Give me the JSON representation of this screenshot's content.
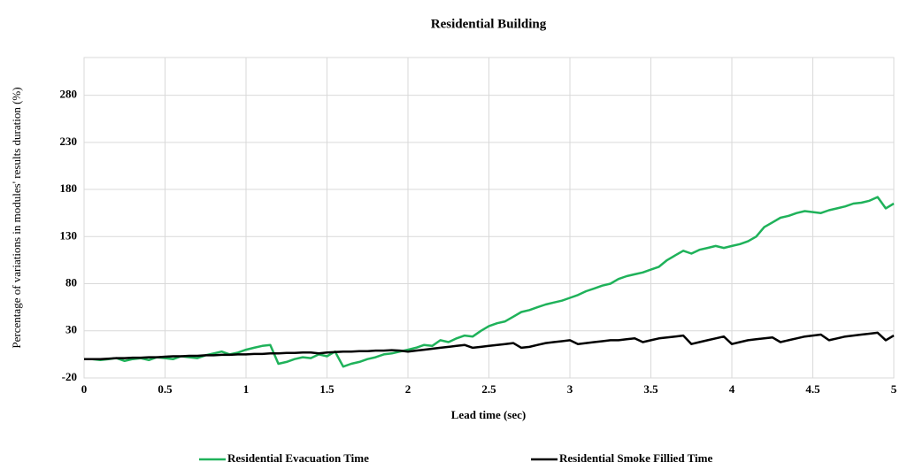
{
  "chart_data": {
    "type": "line",
    "title": "Residential Building",
    "x_label": "Lead time (sec)",
    "y_label": "Percentage of variations in modules' results duration (%)",
    "xlim": [
      0,
      5
    ],
    "xticks": [
      0,
      0.5,
      1,
      1.5,
      2,
      2.5,
      3,
      3.5,
      4,
      4.5,
      5
    ],
    "ylim": [
      -20,
      320
    ],
    "yticks": [
      -20,
      30,
      80,
      130,
      180,
      230,
      280
    ],
    "grid": true,
    "legend": "bottom",
    "x": [
      0,
      0.05,
      0.1,
      0.15,
      0.2,
      0.25,
      0.3,
      0.35,
      0.4,
      0.45,
      0.5,
      0.55,
      0.6,
      0.65,
      0.7,
      0.75,
      0.8,
      0.85,
      0.9,
      0.95,
      1,
      1.05,
      1.1,
      1.15,
      1.2,
      1.25,
      1.3,
      1.35,
      1.4,
      1.45,
      1.5,
      1.55,
      1.6,
      1.65,
      1.7,
      1.75,
      1.8,
      1.85,
      1.9,
      1.95,
      2,
      2.05,
      2.1,
      2.15,
      2.2,
      2.25,
      2.3,
      2.35,
      2.4,
      2.45,
      2.5,
      2.55,
      2.6,
      2.65,
      2.7,
      2.75,
      2.8,
      2.85,
      2.9,
      2.95,
      3,
      3.05,
      3.1,
      3.15,
      3.2,
      3.25,
      3.3,
      3.35,
      3.4,
      3.45,
      3.5,
      3.55,
      3.6,
      3.65,
      3.7,
      3.75,
      3.8,
      3.85,
      3.9,
      3.95,
      4,
      4.05,
      4.1,
      4.15,
      4.2,
      4.25,
      4.3,
      4.35,
      4.4,
      4.45,
      4.5,
      4.55,
      4.6,
      4.65,
      4.7,
      4.75,
      4.8,
      4.85,
      4.9,
      4.95,
      5
    ],
    "series": [
      {
        "name": "Residential Evacuation Time",
        "color": "#1fb25a",
        "values": [
          0,
          0,
          -1,
          0,
          1,
          -2,
          0,
          1,
          -1,
          2,
          1,
          0,
          3,
          2,
          1,
          4,
          6,
          8,
          5,
          7,
          10,
          12,
          14,
          15,
          -5,
          -3,
          0,
          2,
          1,
          5,
          3,
          8,
          -8,
          -5,
          -3,
          0,
          2,
          5,
          6,
          8,
          10,
          12,
          15,
          14,
          20,
          18,
          22,
          25,
          24,
          30,
          35,
          38,
          40,
          45,
          50,
          52,
          55,
          58,
          60,
          62,
          65,
          68,
          72,
          75,
          78,
          80,
          85,
          88,
          90,
          92,
          95,
          98,
          105,
          110,
          115,
          112,
          116,
          118,
          120,
          118,
          120,
          122,
          125,
          130,
          140,
          145,
          150,
          152,
          155,
          157,
          156,
          155,
          158,
          160,
          162,
          165,
          166,
          168,
          172,
          160,
          165
        ]
      },
      {
        "name": "Residential Smoke Fillied Time",
        "color": "#000000",
        "values": [
          0,
          0,
          0,
          0.5,
          1,
          1,
          1.5,
          1.5,
          2,
          2,
          2.5,
          3,
          3,
          3.5,
          3.5,
          4,
          4,
          4.5,
          4.5,
          5,
          5,
          5.5,
          5.5,
          6,
          6,
          6.5,
          6.5,
          7,
          7,
          6,
          7,
          7.5,
          8,
          8,
          8.5,
          8.5,
          9,
          9,
          9.5,
          9,
          8,
          9,
          10,
          11,
          12,
          13,
          14,
          15,
          12,
          13,
          14,
          15,
          16,
          17,
          12,
          13,
          15,
          17,
          18,
          19,
          20,
          16,
          17,
          18,
          19,
          20,
          20,
          21,
          22,
          18,
          20,
          22,
          23,
          24,
          25,
          16,
          18,
          20,
          22,
          24,
          16,
          18,
          20,
          21,
          22,
          23,
          18,
          20,
          22,
          24,
          25,
          26,
          20,
          22,
          24,
          25,
          26,
          27,
          28,
          20,
          25
        ]
      }
    ]
  }
}
